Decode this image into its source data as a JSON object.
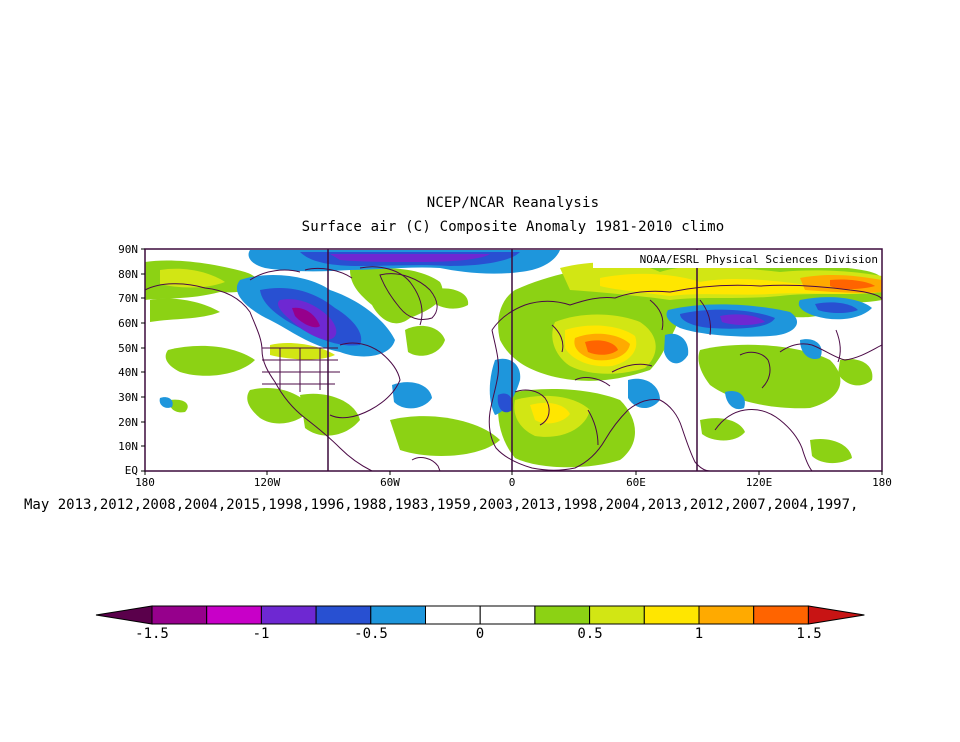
{
  "title": "NCEP/NCAR Reanalysis",
  "subtitle": "Surface air (C) Composite Anomaly 1981-2010 climo",
  "credit": "NOAA/ESRL Physical Sciences Division",
  "composite_label": "May 2013,2012,2008,2004,2015,1998,1996,1988,1983,1959,2003,2013,1998,2004,2013,2012,2007,2004,1997,",
  "lat_labels": [
    "90N",
    "80N",
    "70N",
    "60N",
    "50N",
    "40N",
    "30N",
    "20N",
    "10N",
    "EQ"
  ],
  "lon_labels": [
    "180",
    "120W",
    "60W",
    "0",
    "60E",
    "120E",
    "180"
  ],
  "colorbar": {
    "labels": [
      "-1.5",
      "-1",
      "-0.5",
      "0",
      "0.5",
      "1",
      "1.5"
    ],
    "colors": [
      "#5a004b",
      "#96008c",
      "#c800c8",
      "#6e28d2",
      "#2850d2",
      "#1e96dc",
      "#ffffff",
      "#ffffff",
      "#8cd214",
      "#d2e614",
      "#ffe600",
      "#ffaa00",
      "#ff6400",
      "#c81414"
    ]
  },
  "colors": {
    "frame": "#3c0a3c",
    "coast": "#4b0a46"
  }
}
